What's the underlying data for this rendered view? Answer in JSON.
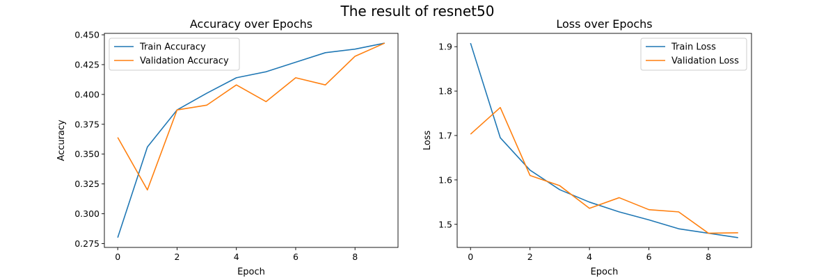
{
  "figure": {
    "suptitle": "The result of resnet50"
  },
  "chart_data": [
    {
      "type": "line",
      "title": "Accuracy over Epochs",
      "xlabel": "Epoch",
      "ylabel": "Accuracy",
      "xlim": [
        -0.45,
        9.45
      ],
      "ylim": [
        0.2718,
        0.4512
      ],
      "xticks": [
        0,
        2,
        4,
        6,
        8
      ],
      "yticks": [
        0.275,
        0.3,
        0.325,
        0.35,
        0.375,
        0.4,
        0.425,
        0.45
      ],
      "ytick_labels": [
        "0.275",
        "0.300",
        "0.325",
        "0.350",
        "0.375",
        "0.400",
        "0.425",
        "0.450"
      ],
      "legend_position": "upper-left",
      "grid": false,
      "x": [
        0,
        1,
        2,
        3,
        4,
        5,
        6,
        7,
        8,
        9
      ],
      "series": [
        {
          "name": "Train Accuracy",
          "color": "#1f77b4",
          "values": [
            0.28,
            0.356,
            0.387,
            0.401,
            0.414,
            0.419,
            0.427,
            0.435,
            0.438,
            0.443
          ]
        },
        {
          "name": "Validation Accuracy",
          "color": "#ff7f0e",
          "values": [
            0.364,
            0.32,
            0.387,
            0.391,
            0.408,
            0.394,
            0.414,
            0.408,
            0.432,
            0.443
          ]
        }
      ]
    },
    {
      "type": "line",
      "title": "Loss over Epochs",
      "xlabel": "Epoch",
      "ylabel": "Loss",
      "xlim": [
        -0.45,
        9.45
      ],
      "ylim": [
        1.448,
        1.93
      ],
      "xticks": [
        0,
        2,
        4,
        6,
        8
      ],
      "yticks": [
        1.5,
        1.6,
        1.7,
        1.8,
        1.9
      ],
      "ytick_labels": [
        "1.5",
        "1.6",
        "1.7",
        "1.8",
        "1.9"
      ],
      "legend_position": "upper-right",
      "grid": false,
      "x": [
        0,
        1,
        2,
        3,
        4,
        5,
        6,
        7,
        8,
        9
      ],
      "series": [
        {
          "name": "Train Loss",
          "color": "#1f77b4",
          "values": [
            1.908,
            1.695,
            1.622,
            1.578,
            1.55,
            1.528,
            1.51,
            1.49,
            1.48,
            1.47
          ]
        },
        {
          "name": "Validation Loss",
          "color": "#ff7f0e",
          "values": [
            1.703,
            1.763,
            1.61,
            1.587,
            1.536,
            1.56,
            1.533,
            1.528,
            1.48,
            1.481
          ]
        }
      ]
    }
  ]
}
